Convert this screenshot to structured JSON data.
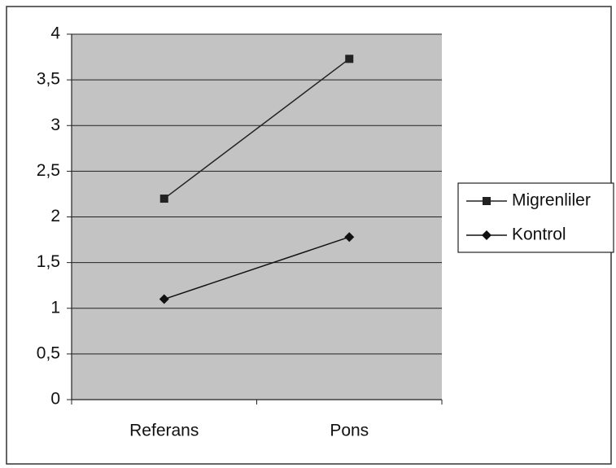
{
  "chart_data": {
    "type": "line",
    "categories": [
      "Referans",
      "Pons"
    ],
    "series": [
      {
        "name": "Migrenliler",
        "color": "#222222",
        "marker": "square",
        "values": [
          2.2,
          3.73
        ]
      },
      {
        "name": "Kontrol",
        "color": "#111111",
        "marker": "diamond",
        "values": [
          1.1,
          1.78
        ]
      }
    ],
    "ylim": [
      0,
      4
    ],
    "yticks": [
      0,
      {
        "value": 0.5,
        "label": "0,5"
      },
      1,
      {
        "value": 1.5,
        "label": "1,5"
      },
      2,
      {
        "value": 2.5,
        "label": "2,5"
      },
      3,
      {
        "value": 3.5,
        "label": "3,5"
      },
      4
    ],
    "grid": true,
    "legend": "right"
  }
}
